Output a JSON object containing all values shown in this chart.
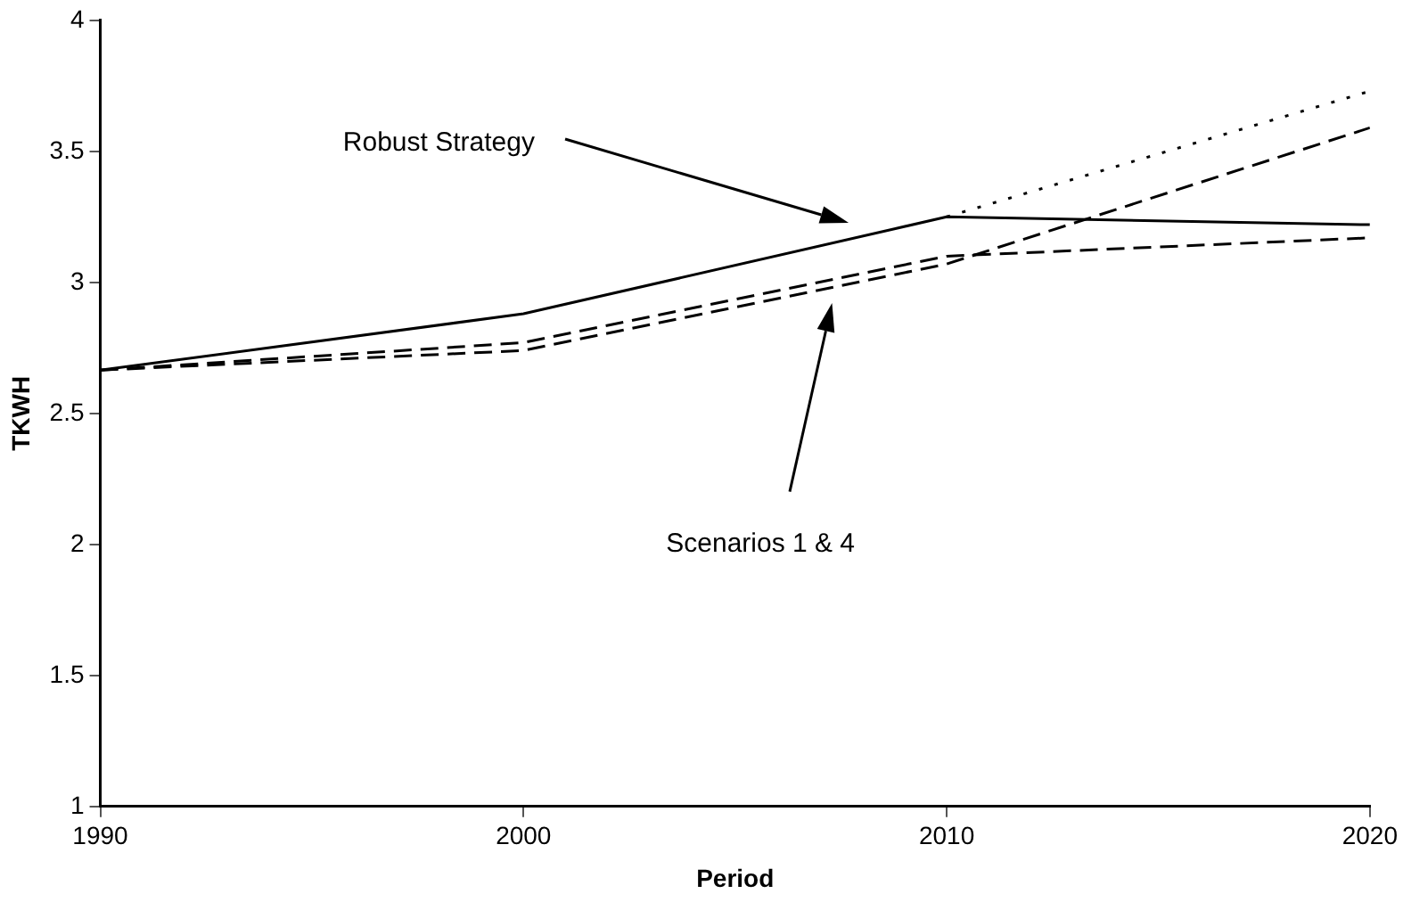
{
  "chart_data": {
    "type": "line",
    "xlabel": "Period",
    "ylabel": "TKWH",
    "x": [
      1990,
      2000,
      2010,
      2020
    ],
    "xlim": [
      1990,
      2020
    ],
    "xticks": [
      1990,
      2000,
      2010,
      2020
    ],
    "ylim": [
      1,
      4
    ],
    "yticks": [
      1,
      1.5,
      2,
      2.5,
      3,
      3.5,
      4
    ],
    "grid": false,
    "legend": false,
    "marker": "none",
    "series": [
      {
        "color": "#000000",
        "line_style": "solid",
        "values": [
          2.665,
          2.88,
          3.25,
          3.22
        ]
      },
      {
        "color": "#000000",
        "line_style": "dotted",
        "x": [
          2010,
          2020
        ],
        "values": [
          3.25,
          3.73
        ]
      },
      {
        "color": "#000000",
        "line_style": "dashed",
        "values": [
          2.665,
          2.74,
          3.07,
          3.59
        ]
      },
      {
        "color": "#000000",
        "line_style": "dashed",
        "values": [
          2.665,
          2.77,
          3.1,
          3.17
        ]
      }
    ],
    "annotations": [
      "Robust Strategy",
      "Scenarios 1 & 4"
    ]
  }
}
